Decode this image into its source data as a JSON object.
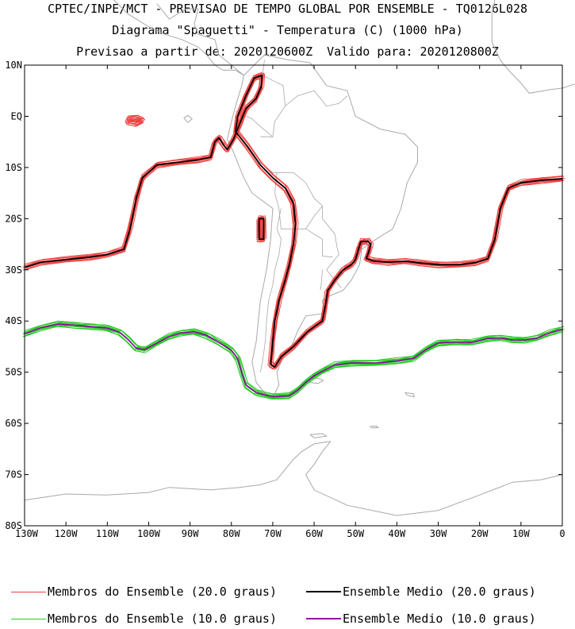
{
  "title": {
    "line1": "CPTEC/INPE/MCT - PREVISAO DE TEMPO GLOBAL POR ENSEMBLE - TQ0126L028",
    "line2": "Diagrama \"Spaguetti\" - Temperatura (C) (1000 hPa)",
    "line3": "Previsao a partir de: 2020120600Z  Valido para: 2020120800Z"
  },
  "axes": {
    "lat_ticks": [
      "10N",
      "EQ",
      "10S",
      "20S",
      "30S",
      "40S",
      "50S",
      "60S",
      "70S",
      "80S"
    ],
    "lon_ticks": [
      "130W",
      "120W",
      "110W",
      "100W",
      "90W",
      "80W",
      "70W",
      "60W",
      "50W",
      "40W",
      "30W",
      "20W",
      "10W",
      "0"
    ],
    "lon_range": [
      -130,
      0
    ],
    "lat_range": [
      -80,
      10
    ]
  },
  "colors": {
    "member_20": "#f04040",
    "mean_20": "#000000",
    "member_10": "#22cc22",
    "mean_10": "#9900aa",
    "coast": "#a8a8a8"
  },
  "legend": {
    "members_20": "Membros do Ensemble (20.0 graus)",
    "mean_20": "Ensemble Medio (20.0 graus)",
    "members_10": "Membros do Ensemble (10.0 graus)",
    "mean_10": "Ensemble Medio (10.0 graus)"
  },
  "contours": {
    "iso20_north": [
      [
        -130,
        -29.5
      ],
      [
        -126,
        -28.5
      ],
      [
        -120,
        -28
      ],
      [
        -114,
        -27.5
      ],
      [
        -110,
        -27
      ],
      [
        -106,
        -26
      ],
      [
        -104.5,
        -22
      ],
      [
        -103,
        -16
      ],
      [
        -101.5,
        -12
      ],
      [
        -98,
        -9.5
      ],
      [
        -93,
        -9
      ],
      [
        -88,
        -8.5
      ],
      [
        -85,
        -8
      ],
      [
        -84,
        -5
      ],
      [
        -83,
        -4.2
      ],
      [
        -82,
        -5.5
      ],
      [
        -81,
        -6.5
      ],
      [
        -79.5,
        -4.5
      ],
      [
        -78,
        -1.5
      ],
      [
        -76.5,
        1.5
      ],
      [
        -74,
        3.5
      ],
      [
        -72.8,
        5.8
      ],
      [
        -72.6,
        8
      ],
      [
        -74.5,
        7.5
      ],
      [
        -76.5,
        4
      ],
      [
        -78.5,
        0
      ],
      [
        -79,
        -3
      ],
      [
        -76,
        -6
      ],
      [
        -73,
        -9.5
      ],
      [
        -70,
        -12
      ],
      [
        -67,
        -14
      ],
      [
        -65,
        -17
      ],
      [
        -64.5,
        -21
      ],
      [
        -65,
        -25
      ],
      [
        -66,
        -29
      ],
      [
        -67,
        -32
      ],
      [
        -68.5,
        -36
      ],
      [
        -69.5,
        -40
      ],
      [
        -70,
        -44
      ],
      [
        -70.5,
        -48.5
      ],
      [
        -69.5,
        -49
      ],
      [
        -68,
        -47
      ],
      [
        -65,
        -45
      ],
      [
        -61.5,
        -42
      ],
      [
        -58,
        -40
      ],
      [
        -57.3,
        -37
      ],
      [
        -56.7,
        -34
      ],
      [
        -55,
        -32
      ],
      [
        -53,
        -30
      ],
      [
        -51,
        -29
      ],
      [
        -50,
        -28
      ],
      [
        -49.3,
        -26
      ],
      [
        -48.7,
        -24.5
      ],
      [
        -47,
        -24.4
      ],
      [
        -46.3,
        -25
      ],
      [
        -46.8,
        -26.5
      ],
      [
        -47.4,
        -27.8
      ],
      [
        -45.5,
        -28.3
      ],
      [
        -42,
        -28.5
      ],
      [
        -38,
        -28.3
      ],
      [
        -34,
        -28.7
      ],
      [
        -30,
        -29
      ],
      [
        -25,
        -29
      ],
      [
        -21,
        -28.6
      ],
      [
        -18,
        -27.8
      ],
      [
        -16.3,
        -24
      ],
      [
        -15,
        -18
      ],
      [
        -13,
        -14
      ],
      [
        -10,
        -13
      ],
      [
        -5,
        -12.5
      ],
      [
        0,
        -12.2
      ]
    ],
    "iso20_south_island": [
      [
        -73.3,
        -20
      ],
      [
        -72.2,
        -20
      ],
      [
        -72.2,
        -24
      ],
      [
        -73.3,
        -24
      ],
      [
        -73.3,
        -20
      ]
    ],
    "iso10": [
      [
        -130,
        -42.5
      ],
      [
        -126,
        -41.3
      ],
      [
        -122,
        -40.6
      ],
      [
        -118,
        -40.8
      ],
      [
        -114,
        -41.1
      ],
      [
        -110,
        -41.4
      ],
      [
        -107,
        -42.2
      ],
      [
        -105,
        -43.6
      ],
      [
        -103,
        -45.3
      ],
      [
        -101,
        -45.6
      ],
      [
        -98,
        -44.3
      ],
      [
        -95,
        -43
      ],
      [
        -92,
        -42.3
      ],
      [
        -89,
        -42.1
      ],
      [
        -86,
        -42.8
      ],
      [
        -83,
        -44.2
      ],
      [
        -80,
        -45.7
      ],
      [
        -78.5,
        -47.3
      ],
      [
        -77.5,
        -50
      ],
      [
        -76.5,
        -52.5
      ],
      [
        -74,
        -54
      ],
      [
        -70,
        -54.8
      ],
      [
        -66,
        -54.6
      ],
      [
        -64,
        -53.5
      ],
      [
        -62,
        -52
      ],
      [
        -60,
        -50.7
      ],
      [
        -58,
        -49.8
      ],
      [
        -55,
        -48.6
      ],
      [
        -51,
        -48.2
      ],
      [
        -45,
        -48.2
      ],
      [
        -40,
        -47.8
      ],
      [
        -36,
        -47.3
      ],
      [
        -33,
        -45.6
      ],
      [
        -30,
        -44.3
      ],
      [
        -26,
        -44.1
      ],
      [
        -22,
        -44.2
      ],
      [
        -18,
        -43.4
      ],
      [
        -15,
        -43.3
      ],
      [
        -12,
        -43.7
      ],
      [
        -9,
        -43.7
      ],
      [
        -6,
        -43.3
      ],
      [
        -3,
        -42.3
      ],
      [
        0,
        -41.6
      ]
    ]
  }
}
